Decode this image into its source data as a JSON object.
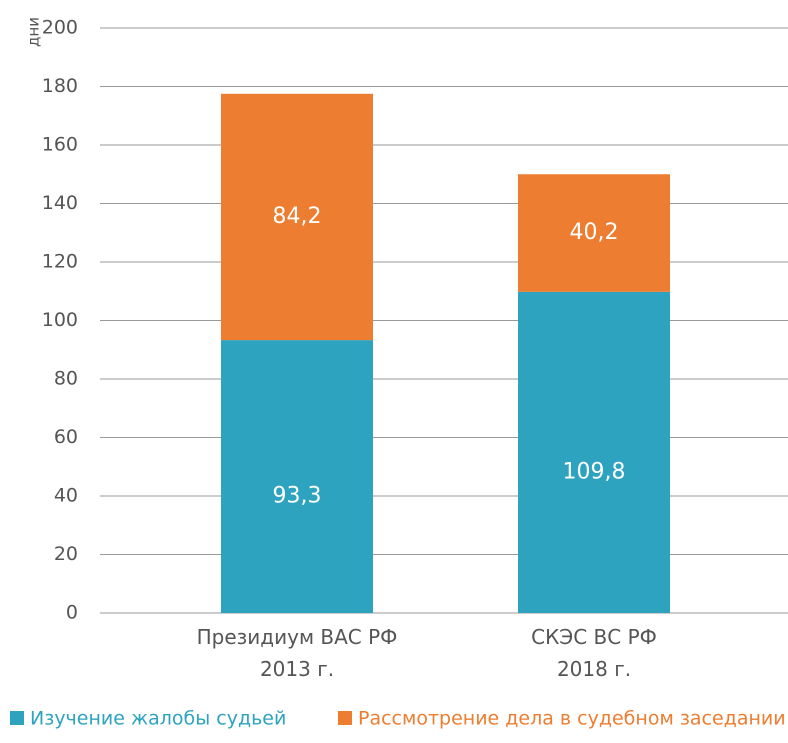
{
  "chart_data": {
    "type": "stacked-bar",
    "y_label": "дни",
    "categories": [
      "Президиум ВАС РФ\n2013 г.",
      "СКЭС ВС РФ\n2018 г."
    ],
    "series": [
      {
        "name": "Изучение жалобы судьей",
        "color": "#2ea3c0",
        "values": [
          93.3,
          109.8
        ],
        "value_labels": [
          "93,3",
          "109,8"
        ]
      },
      {
        "name": "Рассмотрение дела в судебном заседании",
        "color": "#ed7d31",
        "values": [
          84.2,
          40.2
        ],
        "value_labels": [
          "84,2",
          "40,2"
        ]
      }
    ],
    "ylim": [
      0,
      200
    ],
    "yticks": [
      0,
      20,
      40,
      60,
      80,
      100,
      120,
      140,
      160,
      180,
      200
    ],
    "grid": true,
    "legend": "bottom"
  }
}
